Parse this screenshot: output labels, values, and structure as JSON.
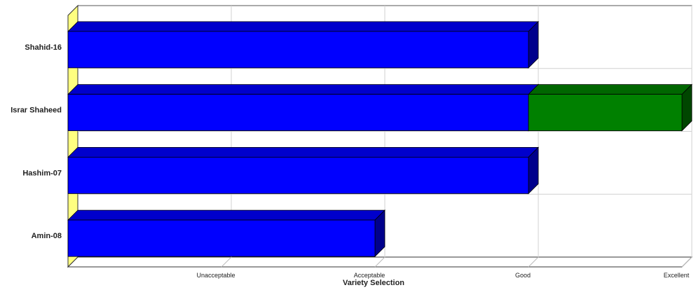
{
  "chart_data": {
    "type": "bar",
    "orientation": "horizontal",
    "stacked": true,
    "style": "3d",
    "categories": [
      "Shahid-16",
      "Israr Shaheed",
      "Hashim-07",
      "Amin-08"
    ],
    "series": [
      {
        "values": [
          3.0,
          3.0,
          3.0,
          2.0
        ],
        "color": "#0000ff"
      },
      {
        "values": [
          0,
          1.0,
          0,
          0
        ],
        "color": "#008000"
      }
    ],
    "x_ticks": [
      "Unacceptable",
      "Acceptable",
      "Good",
      "Excellent"
    ],
    "xlim": [
      0,
      4
    ],
    "xlabel": "Variety Selection",
    "ylabel": "",
    "title": "",
    "grid": true,
    "legend": "none"
  }
}
